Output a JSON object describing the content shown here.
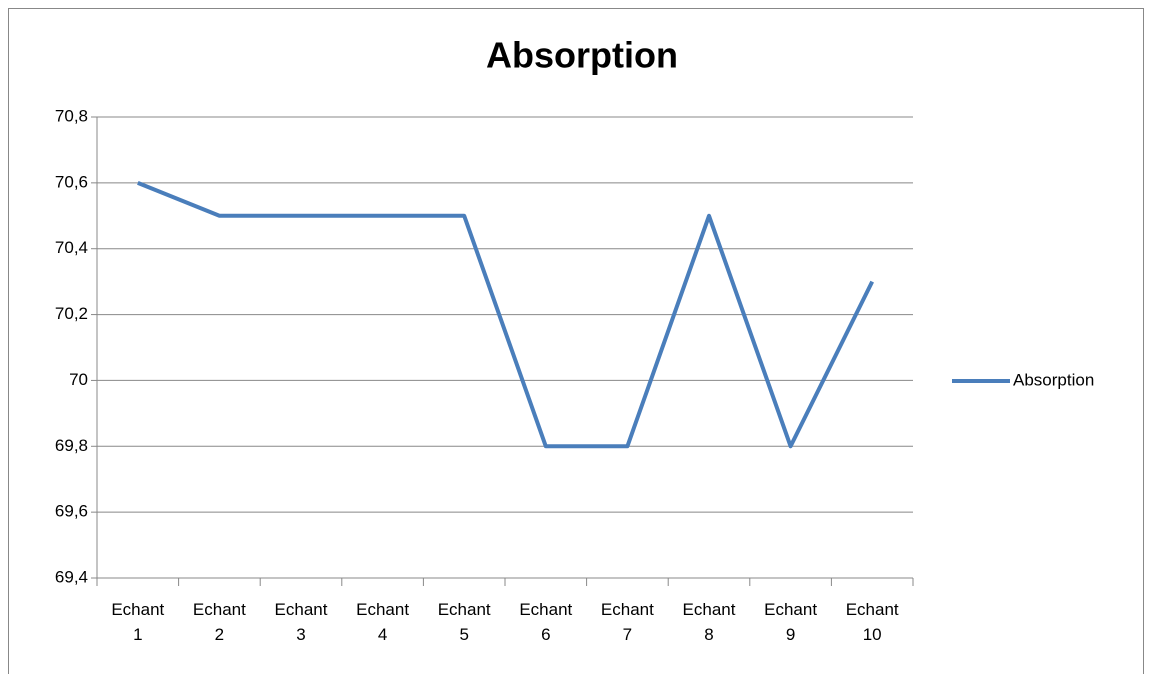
{
  "chart_data": {
    "type": "line",
    "title": "Absorption",
    "categories": [
      "Echant 1",
      "Echant 2",
      "Echant 3",
      "Echant 4",
      "Echant 5",
      "Echant 6",
      "Echant 7",
      "Echant 8",
      "Echant 9",
      "Echant 10"
    ],
    "series": [
      {
        "name": "Absorption",
        "color": "#4a7ebb",
        "values": [
          70.6,
          70.5,
          70.5,
          70.5,
          70.5,
          69.8,
          69.8,
          70.5,
          69.8,
          70.3
        ]
      }
    ],
    "ylim": [
      69.4,
      70.8
    ],
    "yticks": [
      {
        "value": 69.4,
        "label": "69,4"
      },
      {
        "value": 69.6,
        "label": "69,6"
      },
      {
        "value": 69.8,
        "label": "69,8"
      },
      70,
      {
        "value": 70.2,
        "label": "70,2"
      },
      {
        "value": 70.4,
        "label": "70,4"
      },
      {
        "value": 70.6,
        "label": "70,6"
      },
      {
        "value": 70.8,
        "label": "70,8"
      }
    ],
    "grid": true,
    "legend": "right"
  }
}
